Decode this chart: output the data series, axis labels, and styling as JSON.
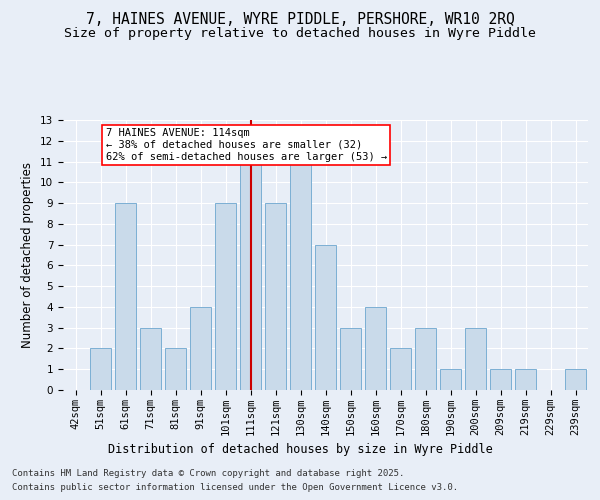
{
  "title_line1": "7, HAINES AVENUE, WYRE PIDDLE, PERSHORE, WR10 2RQ",
  "title_line2": "Size of property relative to detached houses in Wyre Piddle",
  "xlabel": "Distribution of detached houses by size in Wyre Piddle",
  "ylabel": "Number of detached properties",
  "categories": [
    "42sqm",
    "51sqm",
    "61sqm",
    "71sqm",
    "81sqm",
    "91sqm",
    "101sqm",
    "111sqm",
    "121sqm",
    "130sqm",
    "140sqm",
    "150sqm",
    "160sqm",
    "170sqm",
    "180sqm",
    "190sqm",
    "200sqm",
    "209sqm",
    "219sqm",
    "229sqm",
    "239sqm"
  ],
  "values": [
    0,
    2,
    9,
    3,
    2,
    4,
    9,
    11,
    9,
    11,
    7,
    3,
    4,
    2,
    3,
    1,
    3,
    1,
    1,
    0,
    1
  ],
  "bar_color": "#c9daea",
  "bar_edge_color": "#7bafd4",
  "highlight_index": 7,
  "vline_color": "#cc0000",
  "property_label": "7 HAINES AVENUE: 114sqm",
  "annotation_line2": "← 38% of detached houses are smaller (32)",
  "annotation_line3": "62% of semi-detached houses are larger (53) →",
  "ylim": [
    0,
    13
  ],
  "yticks": [
    0,
    1,
    2,
    3,
    4,
    5,
    6,
    7,
    8,
    9,
    10,
    11,
    12,
    13
  ],
  "background_color": "#e8eef7",
  "plot_bg_color": "#e8eef7",
  "footer_line1": "Contains HM Land Registry data © Crown copyright and database right 2025.",
  "footer_line2": "Contains public sector information licensed under the Open Government Licence v3.0.",
  "title_fontsize": 10.5,
  "subtitle_fontsize": 9.5,
  "axis_label_fontsize": 8.5,
  "tick_fontsize": 7.5,
  "annotation_fontsize": 7.5,
  "footer_fontsize": 6.5
}
